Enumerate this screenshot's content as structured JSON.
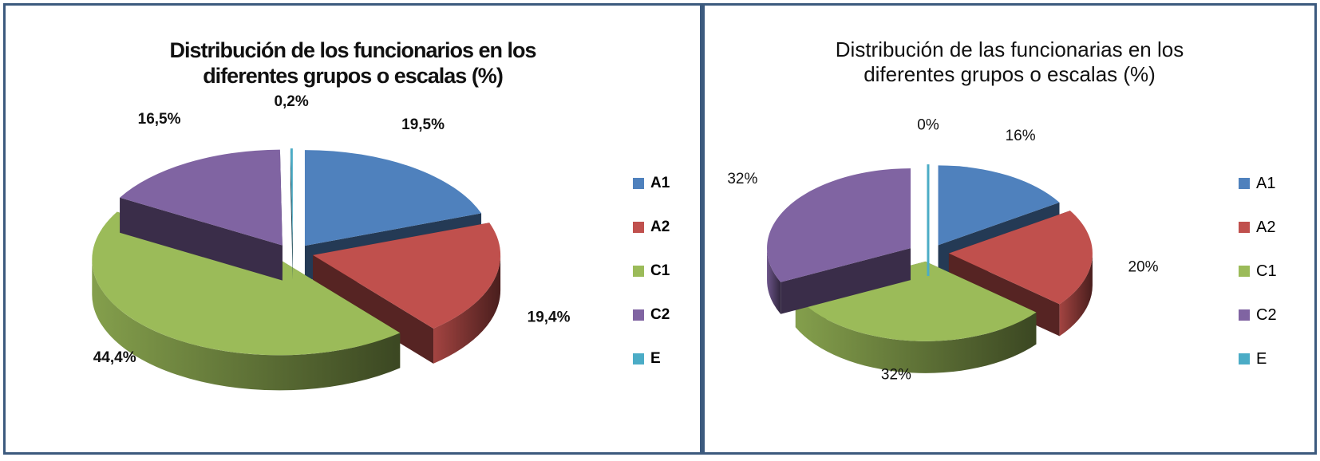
{
  "chart_data": [
    {
      "type": "pie",
      "title_lines": [
        "Distribución de los funcionarios en los",
        "diferentes grupos o escalas (%)"
      ],
      "categories": [
        "A1",
        "A2",
        "C1",
        "C2",
        "E"
      ],
      "values": [
        19.5,
        19.4,
        44.4,
        16.5,
        0.2
      ],
      "data_labels": [
        "19,5%",
        "19,4%",
        "44,4%",
        "16,5%",
        "0,2%"
      ],
      "colors": [
        "#4f81bd",
        "#c0504d",
        "#9bbb59",
        "#8064a2",
        "#4bacc6"
      ],
      "style": "3d-exploded",
      "legend_position": "right"
    },
    {
      "type": "pie",
      "title_lines": [
        "Distribución de las funcionarias en los",
        "diferentes grupos o escalas (%)"
      ],
      "categories": [
        "A1",
        "A2",
        "C1",
        "C2",
        "E"
      ],
      "values": [
        16,
        20,
        32,
        32,
        0
      ],
      "data_labels": [
        "16%",
        "20%",
        "32%",
        "32%",
        "0%"
      ],
      "colors": [
        "#4f81bd",
        "#c0504d",
        "#9bbb59",
        "#8064a2",
        "#4bacc6"
      ],
      "style": "3d-exploded",
      "legend_position": "right"
    }
  ]
}
